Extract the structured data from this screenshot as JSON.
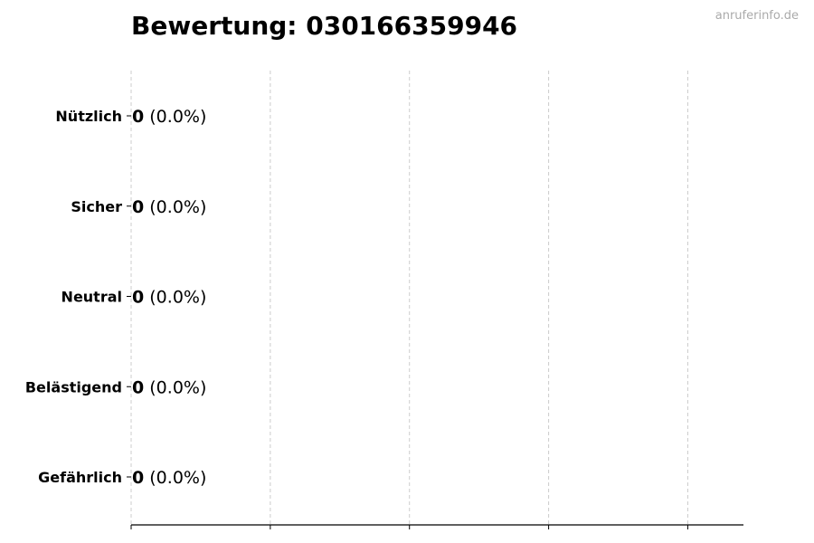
{
  "chart_data": {
    "type": "bar",
    "orientation": "horizontal",
    "title": "Bewertung: 030166359946",
    "categories": [
      "Nützlich",
      "Sicher",
      "Neutral",
      "Belästigend",
      "Gefährlich"
    ],
    "values": [
      0,
      0,
      0,
      0,
      0
    ],
    "percent_labels": [
      "(0.0%)",
      "(0.0%)",
      "(0.0%)",
      "(0.0%)",
      "(0.0%)"
    ],
    "xlabel": "",
    "ylabel": "",
    "xlim": [
      0,
      4.4
    ],
    "xticks": [
      0,
      1,
      2,
      3,
      4
    ],
    "xtick_labels_visible": false,
    "grid": "vertical dashed",
    "bar_edge_color": "#000000",
    "grid_color": "#cccccc"
  },
  "watermark": "anruferinfo.de"
}
